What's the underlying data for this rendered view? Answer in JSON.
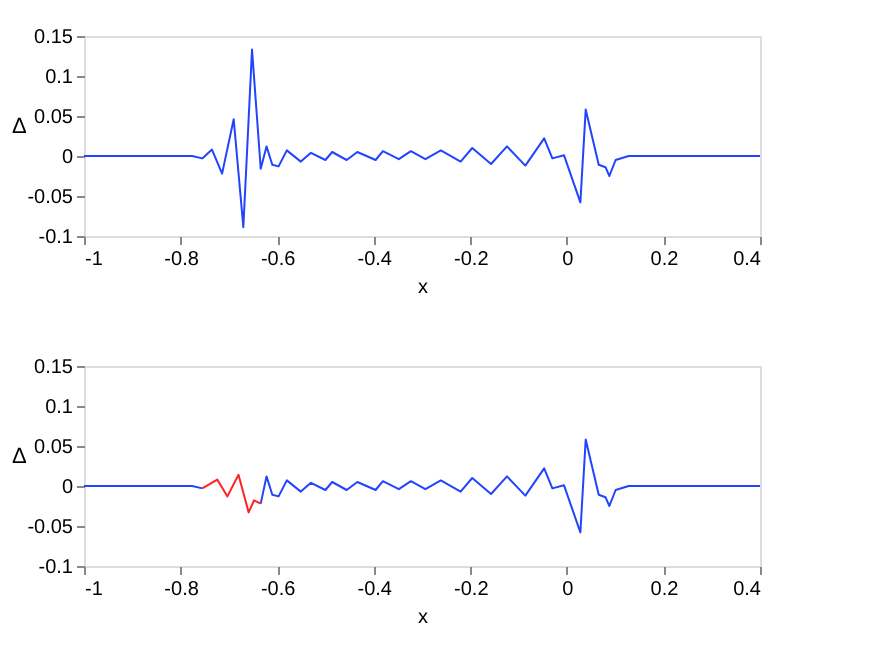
{
  "chart_data": [
    {
      "type": "line",
      "xlabel": "x",
      "ylabel": "Δ",
      "xlim": [
        -1,
        0.4
      ],
      "ylim": [
        -0.1,
        0.15
      ],
      "xticks": [
        -1,
        -0.8,
        -0.6,
        -0.4,
        -0.2,
        0,
        0.2,
        0.4
      ],
      "yticks": [
        -0.1,
        -0.05,
        0,
        0.05,
        0.1,
        0.15
      ],
      "grid": false,
      "marker": "none",
      "line_style": "solid",
      "series": [
        {
          "color": "#2244ff",
          "x": [
            -1,
            -0.776,
            -0.755,
            -0.735,
            -0.714,
            -0.69,
            -0.67,
            -0.652,
            -0.634,
            -0.622,
            -0.61,
            -0.597,
            -0.58,
            -0.551,
            -0.53,
            -0.5,
            -0.486,
            -0.456,
            -0.434,
            -0.396,
            -0.381,
            -0.348,
            -0.323,
            -0.293,
            -0.261,
            -0.22,
            -0.196,
            -0.157,
            -0.124,
            -0.086,
            -0.047,
            -0.03,
            -0.006,
            0.028,
            0.039,
            0.066,
            0.08,
            0.088,
            0.101,
            0.128,
            0.4
          ],
          "values": [
            0,
            0,
            -0.003,
            0.008,
            -0.022,
            0.046,
            -0.089,
            0.133,
            -0.016,
            0.012,
            -0.011,
            -0.013,
            0.007,
            -0.007,
            0.004,
            -0.005,
            0.005,
            -0.005,
            0.005,
            -0.005,
            0.006,
            -0.004,
            0.006,
            -0.004,
            0.007,
            -0.007,
            0.01,
            -0.01,
            0.012,
            -0.012,
            0.022,
            -0.003,
            0.001,
            -0.058,
            0.058,
            -0.011,
            -0.014,
            -0.025,
            -0.005,
            0,
            0
          ]
        }
      ]
    },
    {
      "type": "line",
      "xlabel": "x",
      "ylabel": "Δ",
      "xlim": [
        -1,
        0.4
      ],
      "ylim": [
        -0.1,
        0.15
      ],
      "xticks": [
        -1,
        -0.8,
        -0.6,
        -0.4,
        -0.2,
        0,
        0.2,
        0.4
      ],
      "yticks": [
        -0.1,
        -0.05,
        0,
        0.05,
        0.1,
        0.15
      ],
      "grid": false,
      "marker": "none",
      "line_style": "solid",
      "series": [
        {
          "color": "#2244ff",
          "x": [
            -1,
            -0.776,
            -0.755,
            -0.69,
            -0.634,
            -0.622,
            -0.61,
            -0.597,
            -0.58,
            -0.551,
            -0.53,
            -0.5,
            -0.486,
            -0.456,
            -0.434,
            -0.396,
            -0.381,
            -0.348,
            -0.323,
            -0.293,
            -0.261,
            -0.22,
            -0.196,
            -0.157,
            -0.124,
            -0.086,
            -0.047,
            -0.03,
            -0.006,
            0.028,
            0.039,
            0.066,
            0.08,
            0.088,
            0.101,
            0.128,
            0.4
          ],
          "values": [
            0,
            0,
            -0.003,
            null,
            -0.022,
            0.012,
            -0.011,
            -0.013,
            0.007,
            -0.007,
            0.004,
            -0.005,
            0.005,
            -0.005,
            0.005,
            -0.005,
            0.006,
            -0.004,
            0.006,
            -0.004,
            0.007,
            -0.007,
            0.01,
            -0.01,
            0.012,
            -0.012,
            0.022,
            -0.003,
            0.001,
            -0.058,
            0.058,
            -0.011,
            -0.014,
            -0.025,
            -0.005,
            0,
            0
          ]
        },
        {
          "color": "#ff2222",
          "x": [
            -0.755,
            -0.724,
            -0.703,
            -0.68,
            -0.659,
            -0.648,
            -0.634
          ],
          "values": [
            -0.003,
            0.008,
            -0.013,
            0.014,
            -0.033,
            -0.018,
            -0.022
          ]
        }
      ]
    }
  ]
}
